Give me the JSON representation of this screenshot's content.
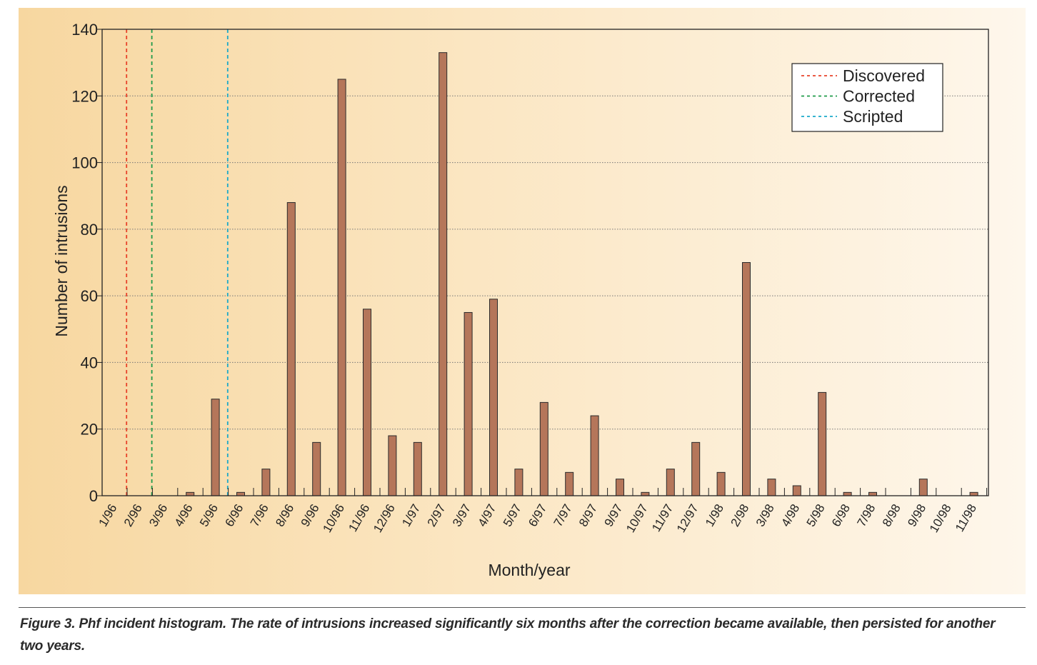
{
  "chart_data": {
    "type": "bar",
    "title": "",
    "xlabel": "Month/year",
    "ylabel": "Number of intrusions",
    "ylim": [
      0,
      140
    ],
    "yticks": [
      0,
      20,
      40,
      60,
      80,
      100,
      120,
      140
    ],
    "grid": true,
    "legend_position": "top-right",
    "categories": [
      "1/96",
      "2/96",
      "3/96",
      "4/96",
      "5/96",
      "6/96",
      "7/96",
      "8/96",
      "9/96",
      "10/96",
      "11/96",
      "12/96",
      "1/97",
      "2/97",
      "3/97",
      "4/97",
      "5/97",
      "6/97",
      "7/97",
      "8/97",
      "9/97",
      "10/97",
      "11/97",
      "12/97",
      "1/98",
      "2/98",
      "3/98",
      "4/98",
      "5/98",
      "6/98",
      "7/98",
      "8/98",
      "9/98",
      "10/98",
      "11/98"
    ],
    "values": [
      0,
      0,
      0,
      1,
      29,
      1,
      8,
      88,
      16,
      125,
      56,
      18,
      16,
      133,
      55,
      59,
      8,
      28,
      7,
      24,
      5,
      1,
      8,
      16,
      7,
      70,
      5,
      3,
      31,
      1,
      1,
      0,
      5,
      0,
      1
    ],
    "bar_color": "#b5765a",
    "markers": [
      {
        "name": "Discovered",
        "position": "2/96",
        "color": "#e8432a"
      },
      {
        "name": "Corrected",
        "position": "3/96",
        "color": "#1f9b4a"
      },
      {
        "name": "Scripted",
        "position": "6/96",
        "color": "#1aa9c9"
      }
    ]
  },
  "caption": "Figure 3. Phf incident histogram. The rate of intrusions increased significantly six months after the correction became available, then persisted for another two years."
}
